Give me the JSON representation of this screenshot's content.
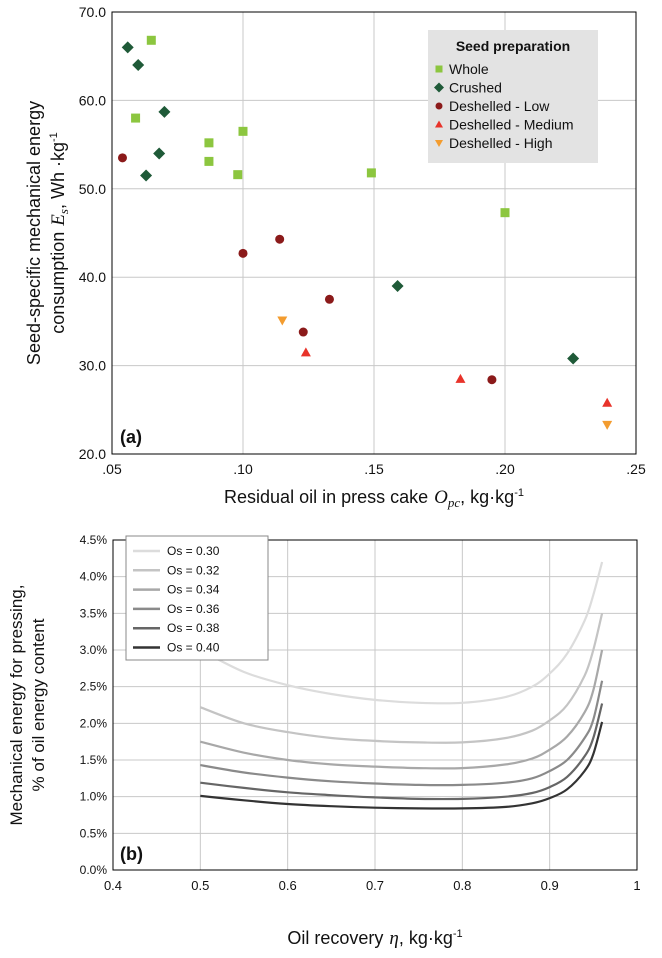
{
  "chart_data": [
    {
      "type": "scatter",
      "panel_label": "(a)",
      "xlabel_text": "Residual oil in press cake",
      "xlabel_symbol": "O",
      "xlabel_symbol_sub": "pc",
      "xlabel_unit": ",  kg·kg",
      "xlabel_unit_sup": "-1",
      "ylabel_line1": "Seed-specific mechanical energy",
      "ylabel_line2_text": "consumption",
      "ylabel_symbol": "E",
      "ylabel_symbol_sub": "s",
      "ylabel_unit": ",  Wh ·kg",
      "ylabel_unit_sup": "-1",
      "xlim": [
        0.05,
        0.25
      ],
      "ylim": [
        20,
        70
      ],
      "x_ticks": [
        0.05,
        0.1,
        0.15,
        0.2,
        0.25
      ],
      "x_tick_labels": [
        ".05",
        ".10",
        ".15",
        ".20",
        ".25"
      ],
      "y_ticks": [
        20,
        30,
        40,
        50,
        60,
        70
      ],
      "y_tick_labels": [
        "20.0",
        "30.0",
        "40.0",
        "50.0",
        "60.0",
        "70.0"
      ],
      "grid": true,
      "legend_title": "Seed preparation",
      "legend_position": "top-right",
      "series": [
        {
          "name": "Whole",
          "marker": "square",
          "color": "#8cc63f",
          "points": [
            [
              0.059,
              58.0
            ],
            [
              0.065,
              66.8
            ],
            [
              0.087,
              55.2
            ],
            [
              0.087,
              53.1
            ],
            [
              0.098,
              51.6
            ],
            [
              0.1,
              56.5
            ],
            [
              0.149,
              51.8
            ],
            [
              0.2,
              47.3
            ]
          ]
        },
        {
          "name": "Crushed",
          "marker": "diamond",
          "color": "#1f5a38",
          "points": [
            [
              0.056,
              66.0
            ],
            [
              0.06,
              64.0
            ],
            [
              0.063,
              51.5
            ],
            [
              0.068,
              54.0
            ],
            [
              0.07,
              58.7
            ],
            [
              0.159,
              39.0
            ],
            [
              0.226,
              30.8
            ]
          ]
        },
        {
          "name": "Deshelled - Low",
          "marker": "circle",
          "color": "#8b1a1a",
          "points": [
            [
              0.054,
              53.5
            ],
            [
              0.1,
              42.7
            ],
            [
              0.114,
              44.3
            ],
            [
              0.123,
              33.8
            ],
            [
              0.133,
              37.5
            ],
            [
              0.195,
              28.4
            ]
          ]
        },
        {
          "name": "Deshelled - Medium",
          "marker": "triangle-up",
          "color": "#e8332a",
          "points": [
            [
              0.124,
              31.5
            ],
            [
              0.183,
              28.5
            ],
            [
              0.239,
              25.8
            ]
          ]
        },
        {
          "name": "Deshelled - High",
          "marker": "triangle-down",
          "color": "#f39c2f",
          "points": [
            [
              0.115,
              35.1
            ],
            [
              0.239,
              23.3
            ]
          ]
        }
      ]
    },
    {
      "type": "line",
      "panel_label": "(b)",
      "xlabel_text": "Oil recovery",
      "xlabel_symbol": "η",
      "xlabel_unit": ",  kg·kg",
      "xlabel_unit_sup": "-1",
      "ylabel_line1": "Mechanical energy for pressing,",
      "ylabel_line2": "% of oil energy content",
      "xlim": [
        0.4,
        1.0
      ],
      "ylim": [
        0.0,
        4.5
      ],
      "x_ticks": [
        0.4,
        0.5,
        0.6,
        0.7,
        0.8,
        0.9,
        1.0
      ],
      "x_tick_labels": [
        "0.4",
        "0.5",
        "0.6",
        "0.7",
        "0.8",
        "0.9",
        "1"
      ],
      "y_ticks": [
        0.0,
        0.5,
        1.0,
        1.5,
        2.0,
        2.5,
        3.0,
        3.5,
        4.0,
        4.5
      ],
      "y_tick_labels": [
        "0.0%",
        "0.5%",
        "1.0%",
        "1.5%",
        "2.0%",
        "2.5%",
        "3.0%",
        "3.5%",
        "4.0%",
        "4.5%"
      ],
      "grid": true,
      "legend_position": "top-left",
      "x": [
        0.5,
        0.55,
        0.6,
        0.65,
        0.7,
        0.75,
        0.8,
        0.85,
        0.88,
        0.9,
        0.92,
        0.94,
        0.95,
        0.96
      ],
      "series": [
        {
          "name": "Os = 0.30",
          "color": "#dcdcdc",
          "values": [
            3.0,
            2.7,
            2.52,
            2.4,
            2.32,
            2.28,
            2.28,
            2.36,
            2.5,
            2.68,
            2.95,
            3.4,
            3.75,
            4.2
          ]
        },
        {
          "name": "Os = 0.32",
          "color": "#c4c4c4",
          "values": [
            2.22,
            2.0,
            1.88,
            1.8,
            1.76,
            1.74,
            1.74,
            1.8,
            1.9,
            2.04,
            2.25,
            2.65,
            3.0,
            3.5
          ]
        },
        {
          "name": "Os = 0.34",
          "color": "#a8a8a8",
          "values": [
            1.75,
            1.6,
            1.5,
            1.44,
            1.41,
            1.39,
            1.39,
            1.44,
            1.52,
            1.64,
            1.82,
            2.15,
            2.45,
            3.0
          ]
        },
        {
          "name": "Os = 0.36",
          "color": "#8a8a8a",
          "values": [
            1.43,
            1.33,
            1.26,
            1.21,
            1.18,
            1.16,
            1.16,
            1.19,
            1.25,
            1.35,
            1.5,
            1.8,
            2.05,
            2.58
          ]
        },
        {
          "name": "Os = 0.38",
          "color": "#666666",
          "values": [
            1.19,
            1.12,
            1.06,
            1.02,
            0.99,
            0.97,
            0.97,
            1.0,
            1.05,
            1.13,
            1.27,
            1.55,
            1.8,
            2.27
          ]
        },
        {
          "name": "Os = 0.40",
          "color": "#333333",
          "values": [
            1.01,
            0.95,
            0.9,
            0.87,
            0.85,
            0.84,
            0.84,
            0.86,
            0.91,
            0.98,
            1.1,
            1.35,
            1.58,
            2.02
          ]
        }
      ]
    }
  ]
}
